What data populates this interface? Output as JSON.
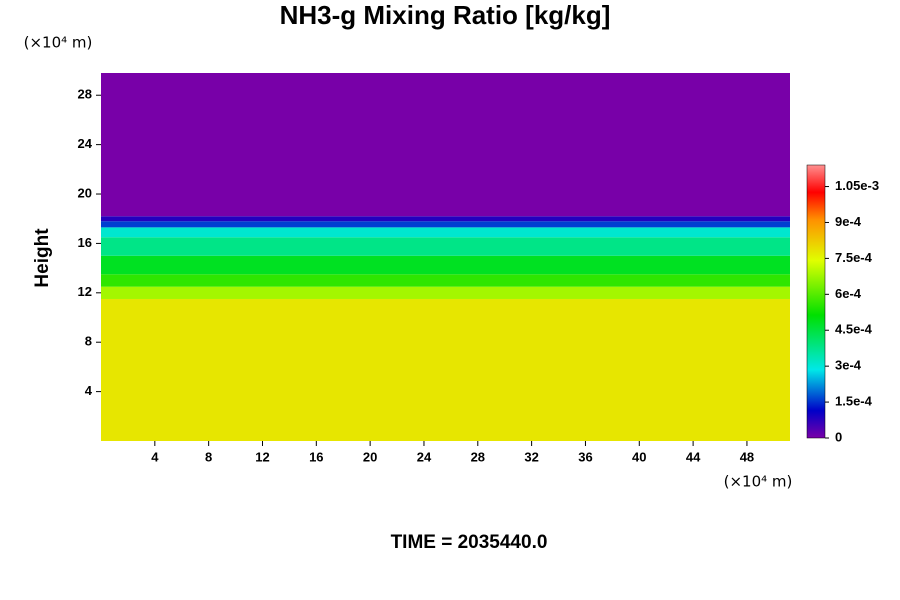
{
  "chart_data": {
    "type": "heatmap",
    "title": "NH3-g Mixing Ratio [kg/kg]",
    "y_label": "Height",
    "y_unit": "(×10⁴ m)",
    "x_unit": "(×10⁴ m)",
    "footer": "TIME = 2035440.0",
    "xlim": [
      0,
      51.2
    ],
    "xticks": [
      4,
      8,
      12,
      16,
      20,
      24,
      28,
      32,
      36,
      40,
      44,
      48
    ],
    "ylim": [
      0,
      29.8
    ],
    "yticks": [
      4,
      8,
      12,
      16,
      20,
      24,
      28
    ],
    "y_bins": [
      0,
      11.5,
      12.5,
      13.5,
      15,
      16.5,
      17.3,
      17.8,
      18.2,
      29.8
    ],
    "values": [
      0.00078,
      0.00068,
      0.00056,
      0.00048,
      0.00038,
      0.00031,
      0.00016,
      8e-05,
      0
    ],
    "clim": [
      0,
      0.00114
    ],
    "colorscale": [
      [
        0,
        "#7800a8"
      ],
      [
        0.1,
        "#0000c8"
      ],
      [
        0.25,
        "#00e8e8"
      ],
      [
        0.45,
        "#00e000"
      ],
      [
        0.65,
        "#e0ff00"
      ],
      [
        0.8,
        "#ff9000"
      ],
      [
        0.9,
        "#ff0000"
      ],
      [
        1,
        "#ff9090"
      ]
    ],
    "cticks": [
      0,
      {
        "value": 0.00015,
        "label": "1.5e-4"
      },
      {
        "value": 0.0003,
        "label": "3e-4"
      },
      {
        "value": 0.00045,
        "label": "4.5e-4"
      },
      {
        "value": 0.0006,
        "label": "6e-4"
      },
      {
        "value": 0.00075,
        "label": "7.5e-4"
      },
      {
        "value": 0.0009,
        "label": "9e-4"
      },
      {
        "value": 0.00105,
        "label": "1.05e-3"
      }
    ]
  }
}
